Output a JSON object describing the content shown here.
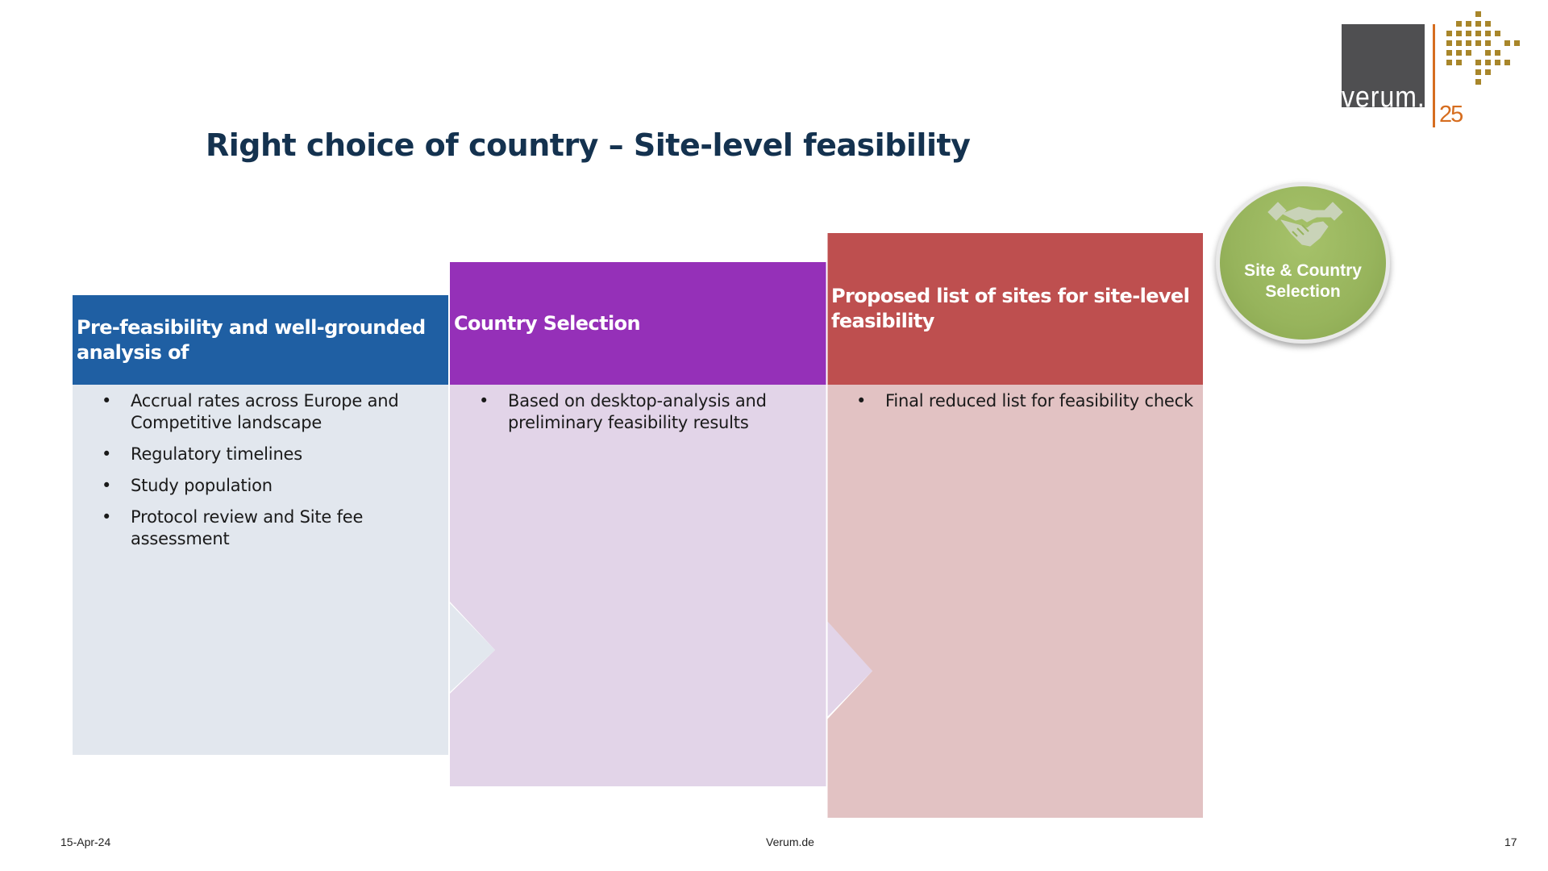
{
  "logo": {
    "wordmark": "verum.",
    "anniversary": "25"
  },
  "title": "Right choice of country – Site-level feasibility",
  "badge": {
    "label_line1": "Site & Country",
    "label_line2": "Selection",
    "icon": "handshake-icon",
    "color": "#97b45c"
  },
  "columns": [
    {
      "header": "Pre-feasibility and well-grounded analysis of",
      "header_color": "#1f5fa3",
      "body_color": "#e2e7ee",
      "items": [
        "Accrual rates across Europe and Competitive landscape",
        "Regulatory timelines",
        "Study population",
        "Protocol review and Site fee assessment"
      ]
    },
    {
      "header": "Country Selection",
      "header_color": "#9530b8",
      "body_color": "#e2d4e8",
      "items": [
        "Based on desktop-analysis and preliminary feasibility results"
      ]
    },
    {
      "header": "Proposed list of sites for site-level feasibility",
      "header_color": "#be4f4f",
      "body_color": "#e2c2c3",
      "items": [
        "Final reduced list for feasibility check"
      ]
    }
  ],
  "footer": {
    "date": "15-Apr-24",
    "website": "Verum.de",
    "page_number": "17"
  }
}
